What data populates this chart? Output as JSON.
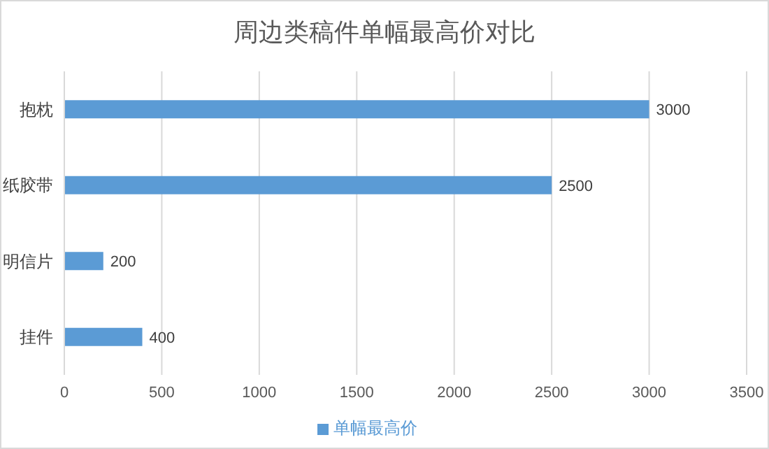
{
  "chart_data": {
    "type": "bar",
    "orientation": "horizontal",
    "title": "周边类稿件单幅最高价对比",
    "categories": [
      "抱枕",
      "纸胶带",
      "明信片",
      "挂件"
    ],
    "series": [
      {
        "name": "单幅最高价",
        "color": "#5b9bd5",
        "values": [
          3000,
          2500,
          200,
          400
        ]
      }
    ],
    "xlim": [
      0,
      3500
    ],
    "xticks": [
      0,
      500,
      1000,
      1500,
      2000,
      2500,
      3000,
      3500
    ],
    "grid": "x",
    "legend": "bottom",
    "data_labels": true
  }
}
